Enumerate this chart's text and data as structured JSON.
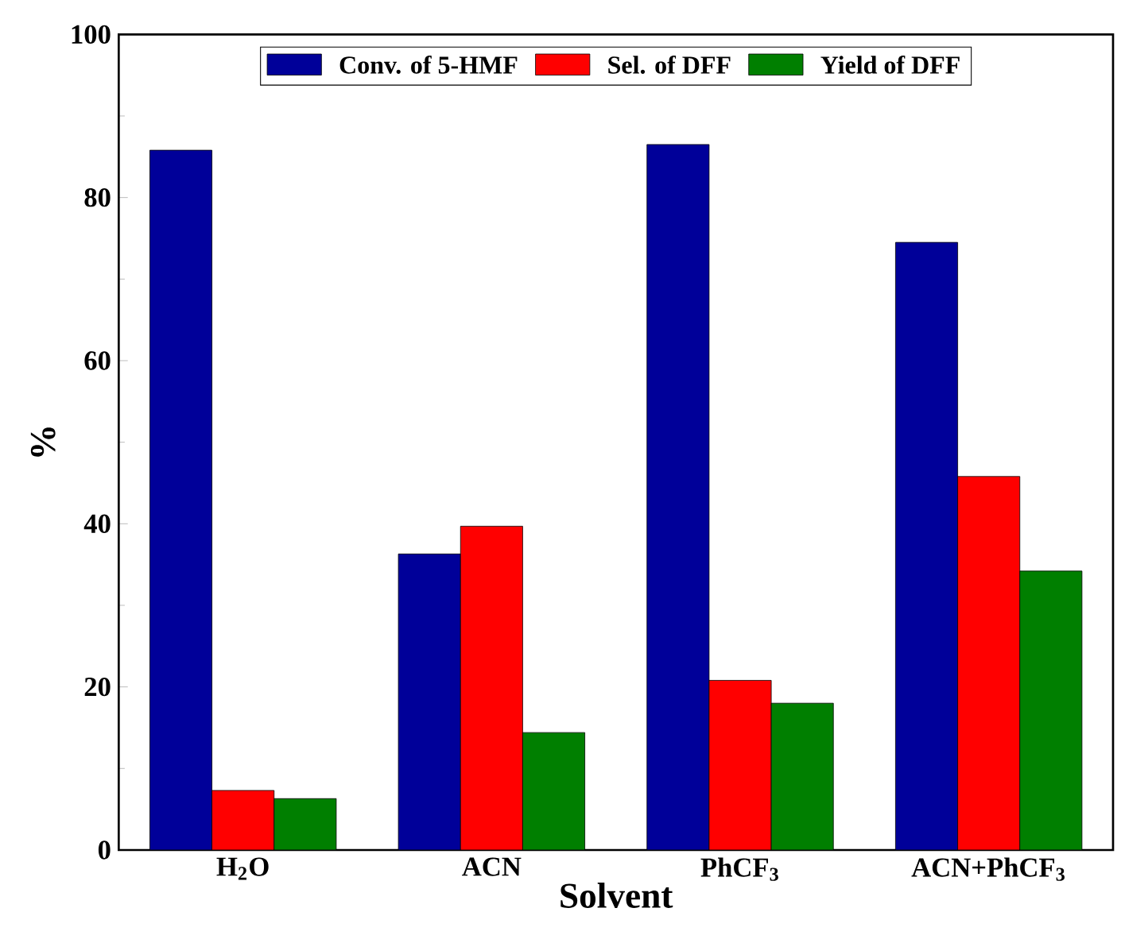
{
  "chart_data": {
    "type": "bar",
    "xlabel": "Solvent",
    "ylabel": "%",
    "categories": [
      "H$_{2}$O",
      "ACN",
      "PhCF$_{3}$",
      "ACN+PhCF$_{3}$"
    ],
    "series": [
      {
        "name": "Conv. of 5-HMF",
        "color": "#000099",
        "values": [
          85.8,
          36.3,
          86.5,
          74.5
        ]
      },
      {
        "name": "Sel. of DFF",
        "color": "#ff0000",
        "values": [
          7.3,
          39.7,
          20.8,
          45.8
        ]
      },
      {
        "name": "Yield of DFF",
        "color": "#007f00",
        "values": [
          6.3,
          14.4,
          18.0,
          34.2
        ]
      }
    ],
    "ylim": [
      0,
      100
    ],
    "yticks": [
      0,
      20,
      40,
      60,
      80,
      100
    ],
    "legend": "top"
  }
}
